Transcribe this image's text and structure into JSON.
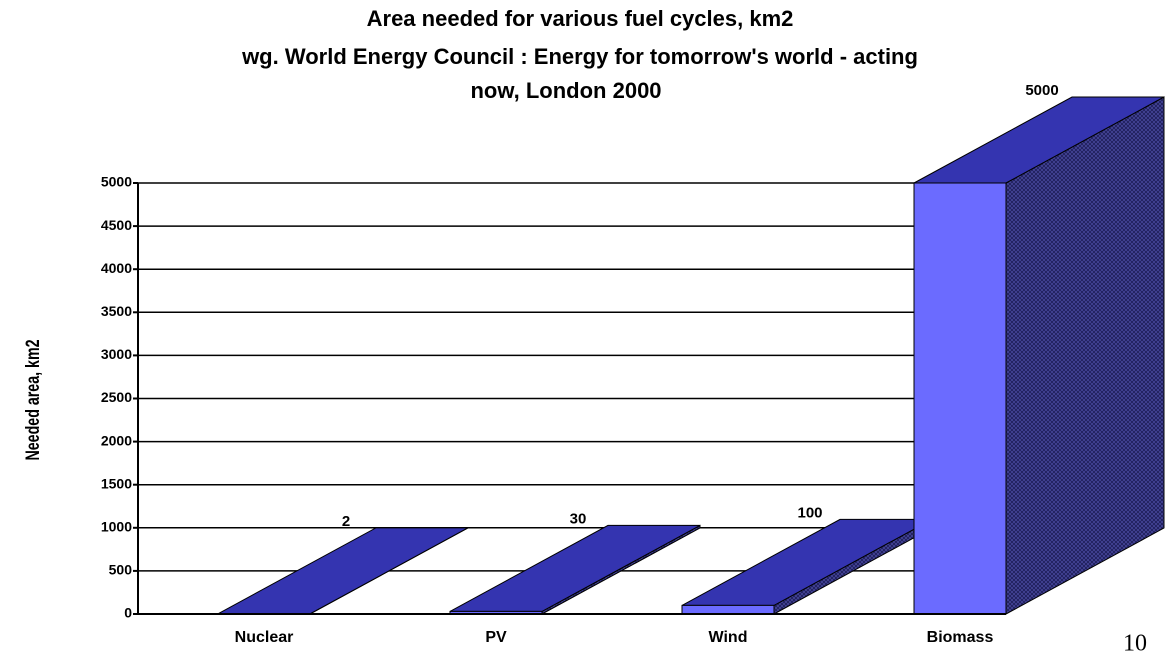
{
  "chart_data": {
    "type": "bar3d",
    "title": "Area needed for various fuel cycles, km2",
    "subtitle": [
      "wg. World Energy Council : Energy for tomorrow's world - acting",
      "now,  London 2000"
    ],
    "y_label": "Needed area, km2",
    "categories": [
      "Nuclear",
      "PV",
      "Wind",
      "Biomass"
    ],
    "values": [
      2,
      30,
      100,
      5000
    ],
    "color": "#6b6bff",
    "ylim": [
      0,
      5000
    ],
    "yticks": [
      0,
      500,
      1000,
      1500,
      2000,
      2500,
      3000,
      3500,
      4000,
      4500,
      5000
    ],
    "grid": true
  },
  "page_number": "10"
}
